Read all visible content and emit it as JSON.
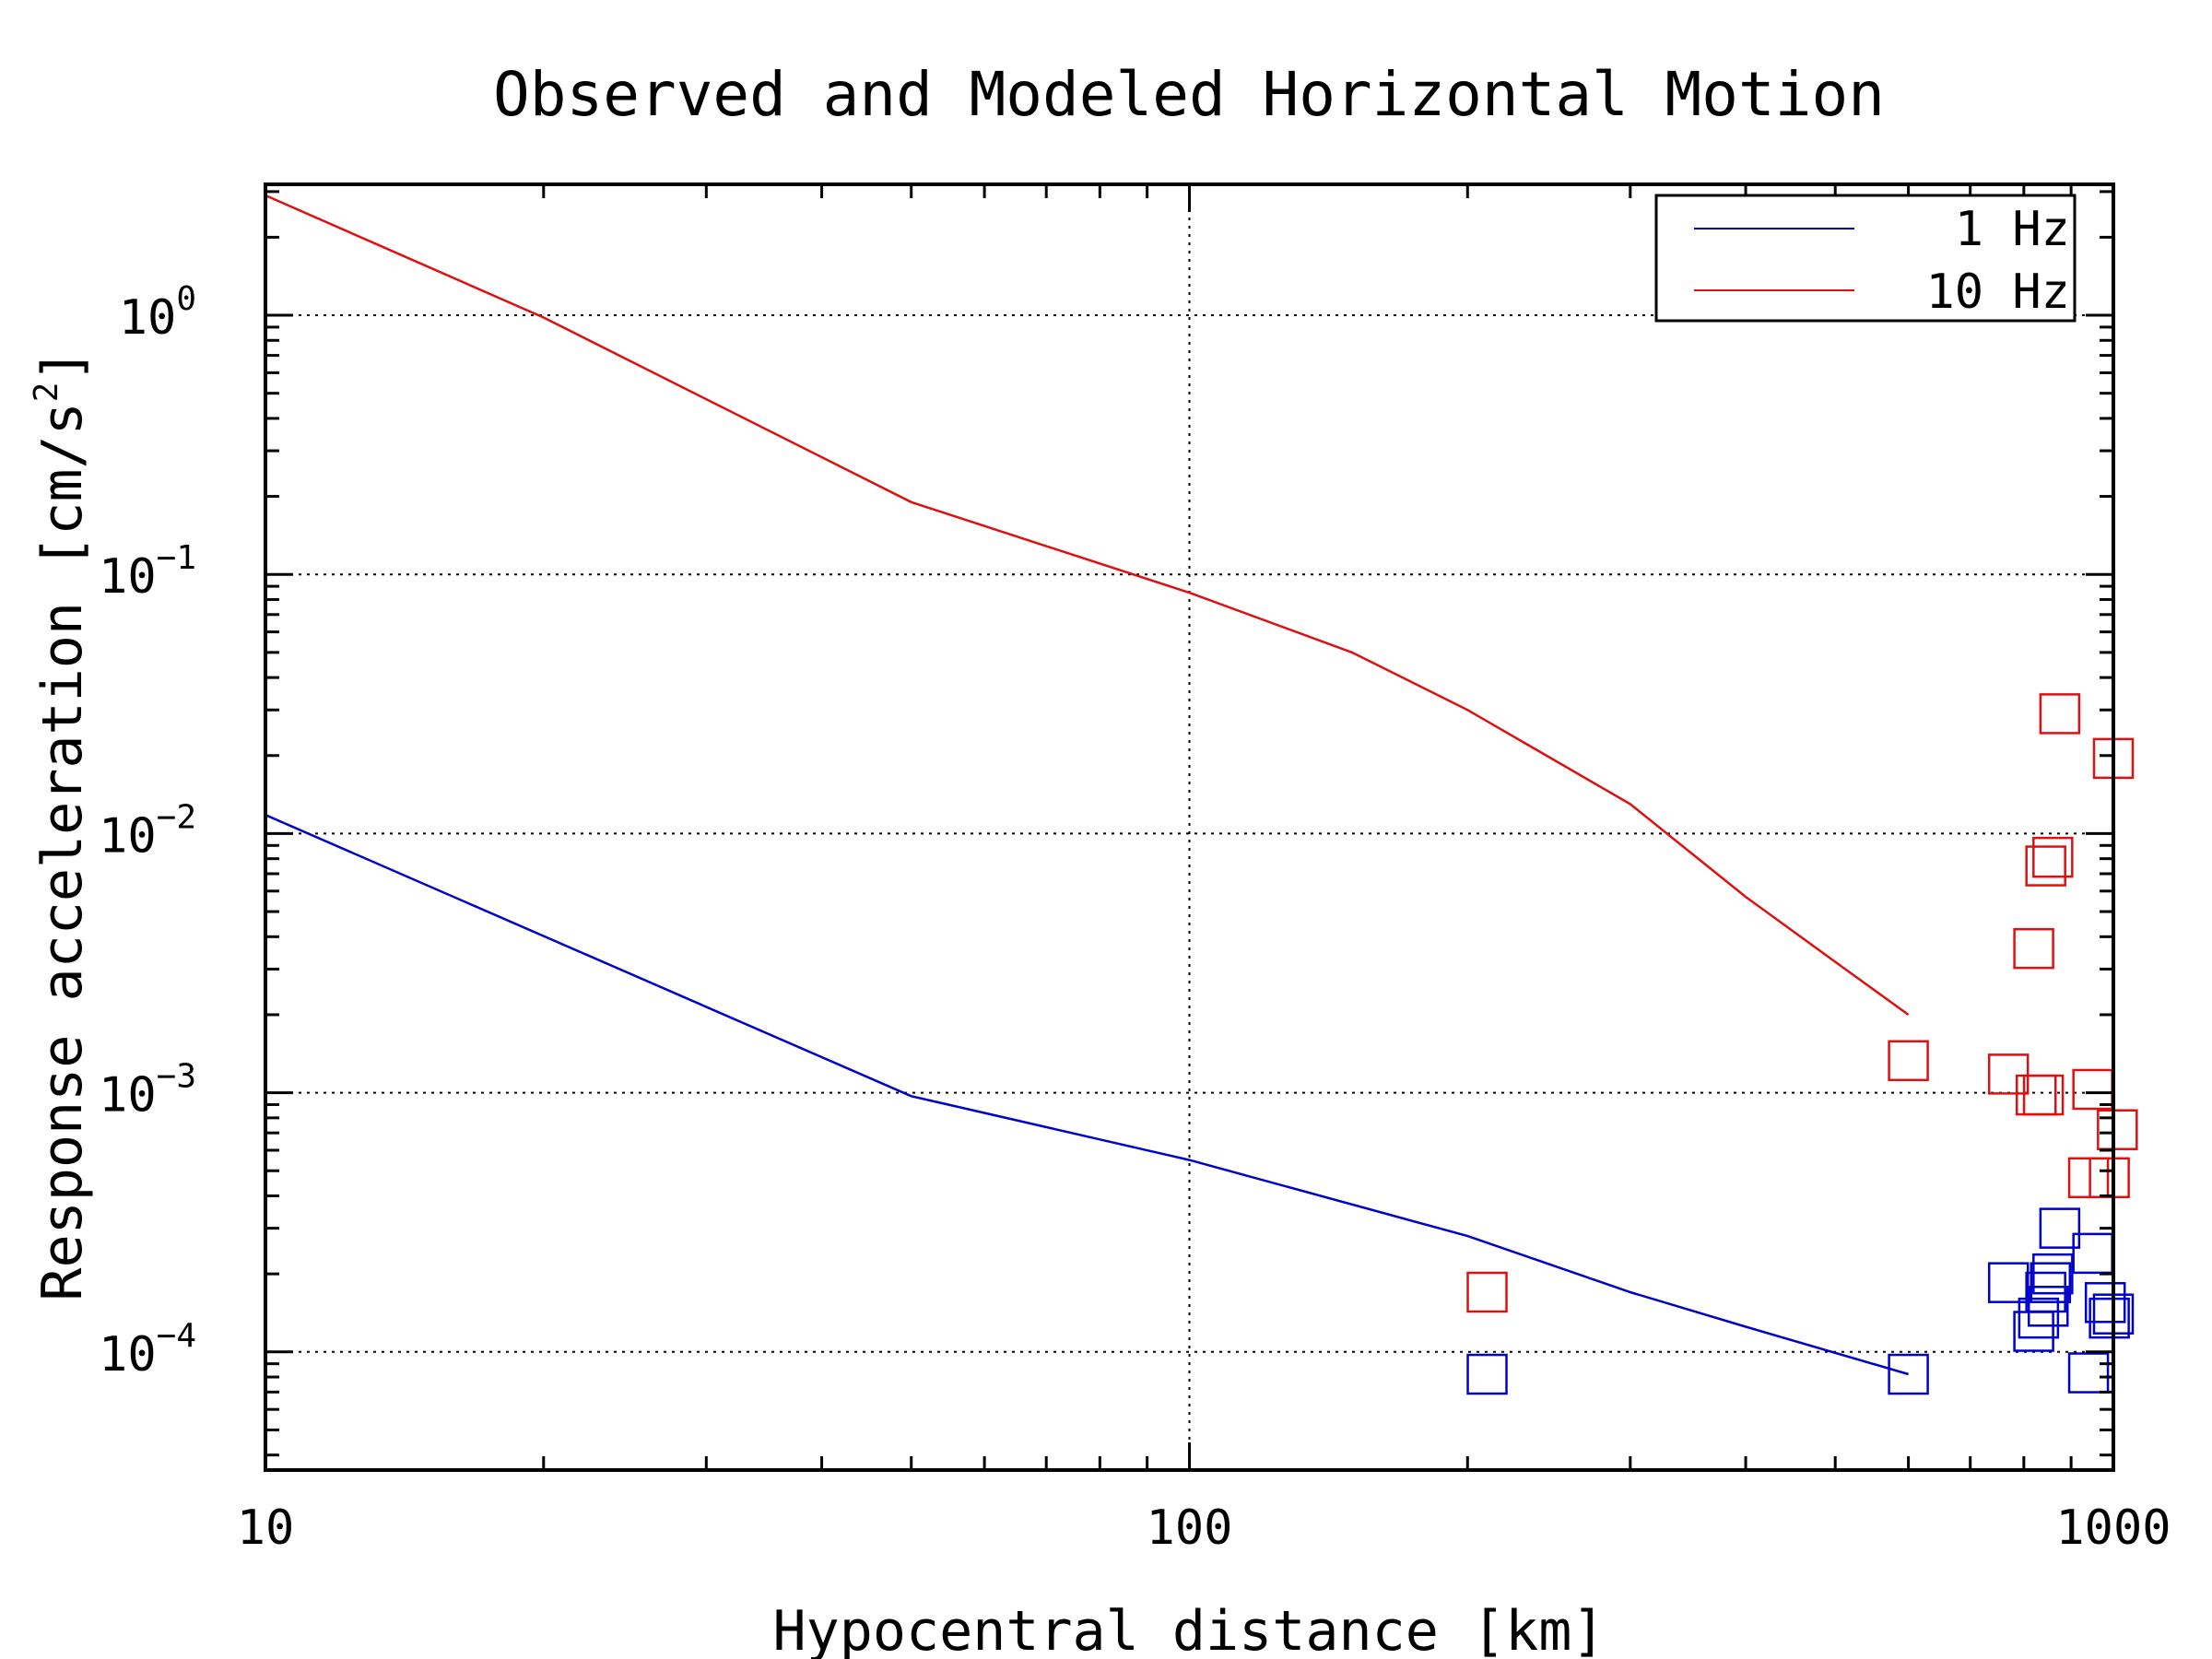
{
  "chart_data": {
    "type": "scatter",
    "title": "Observed and Modeled Horizontal Motion",
    "xlabel": "Hypocentral distance [km]",
    "ylabel": "Response acceleration [cm/s",
    "ylabel_superscript": "2",
    "ylabel_close": "]",
    "x_scale": "log",
    "y_scale": "log",
    "xlim": [
      10,
      1000
    ],
    "ylim": [
      3.5e-05,
      3.2
    ],
    "x_ticks": [
      {
        "value": 10,
        "label": "10"
      },
      {
        "value": 100,
        "label": "100"
      },
      {
        "value": 1000,
        "label": "1000"
      }
    ],
    "y_ticks": [
      {
        "value": 0.0001,
        "base": "10",
        "exp": "−4"
      },
      {
        "value": 0.001,
        "base": "10",
        "exp": "−3"
      },
      {
        "value": 0.01,
        "base": "10",
        "exp": "−2"
      },
      {
        "value": 0.1,
        "base": "10",
        "exp": "−1"
      },
      {
        "value": 1,
        "base": "10",
        "exp": "0"
      }
    ],
    "grid": true,
    "legend_position": "top-right",
    "series": [
      {
        "name": "1 Hz",
        "color": "#0000cc",
        "line": [
          [
            10,
            0.0118
          ],
          [
            50,
            0.00097
          ],
          [
            100,
            0.00055
          ],
          [
            200,
            0.00028
          ],
          [
            300,
            0.00017
          ],
          [
            400,
            0.000125
          ],
          [
            600,
            8.2e-05
          ]
        ],
        "markers": [
          [
            210,
            8.2e-05
          ],
          [
            600,
            8.2e-05
          ],
          [
            770,
            0.000185
          ],
          [
            820,
            0.00012
          ],
          [
            830,
            0.000135
          ],
          [
            845,
            0.00017
          ],
          [
            850,
            0.00015
          ],
          [
            855,
            0.000185
          ],
          [
            860,
            0.0002
          ],
          [
            875,
            0.0003
          ],
          [
            940,
            8.3e-05
          ],
          [
            950,
            0.00024
          ],
          [
            980,
            0.000155
          ],
          [
            990,
            0.000135
          ],
          [
            1000,
            0.00014
          ]
        ]
      },
      {
        "name": "10 Hz",
        "color": "#dd1111",
        "line": [
          [
            10,
            2.9
          ],
          [
            20,
            0.98
          ],
          [
            50,
            0.19
          ],
          [
            100,
            0.085
          ],
          [
            150,
            0.05
          ],
          [
            200,
            0.03
          ],
          [
            300,
            0.013
          ],
          [
            400,
            0.0057
          ],
          [
            500,
            0.0032
          ],
          [
            600,
            0.002
          ]
        ],
        "markers": [
          [
            210,
            0.00017
          ],
          [
            600,
            0.00133
          ],
          [
            770,
            0.00118
          ],
          [
            820,
            0.0036
          ],
          [
            825,
            0.00098
          ],
          [
            840,
            0.00098
          ],
          [
            845,
            0.0075
          ],
          [
            860,
            0.0081
          ],
          [
            875,
            0.029
          ],
          [
            940,
            0.00047
          ],
          [
            950,
            0.00103
          ],
          [
            990,
            0.00047
          ],
          [
            1000,
            0.0195
          ],
          [
            1010,
            0.00072
          ]
        ]
      }
    ]
  }
}
